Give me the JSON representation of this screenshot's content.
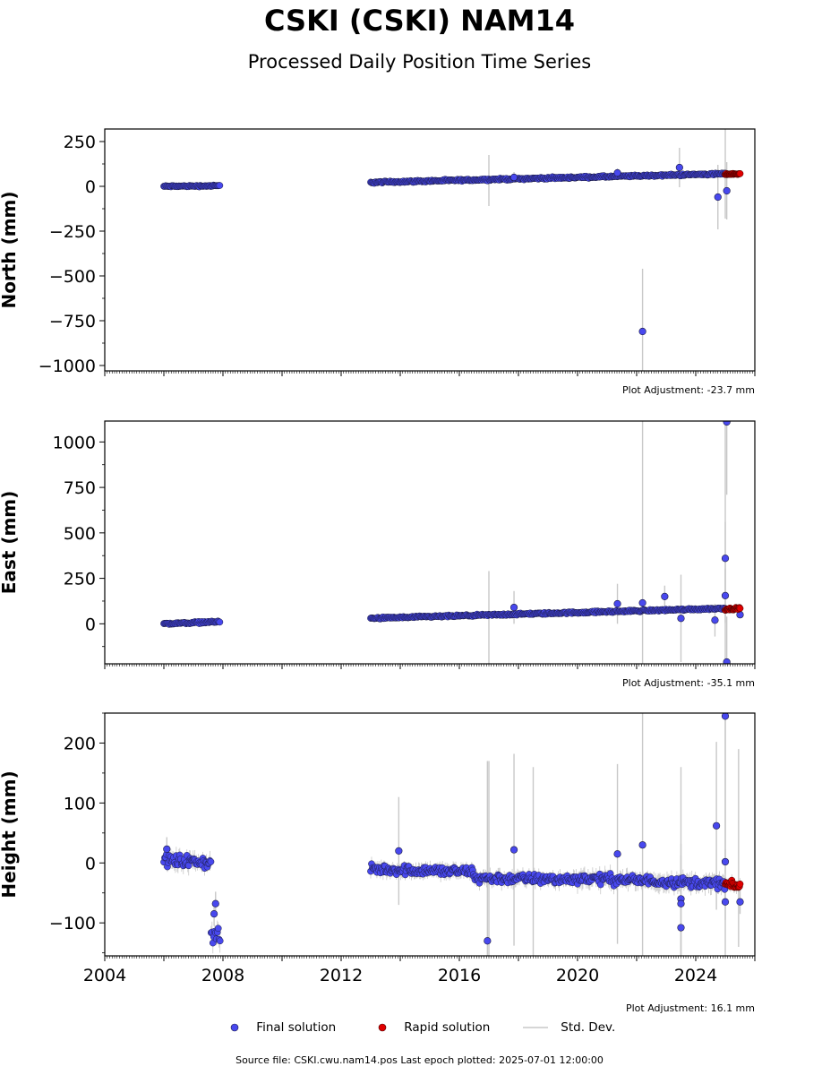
{
  "header": {
    "title": "CSKI (CSKI) NAM14",
    "subtitle": "Processed Daily Position Time Series"
  },
  "footer": {
    "source": "Source file: CSKI.cwu.nam14.pos  Last epoch plotted: 2025-07-01 12:00:00"
  },
  "legend": {
    "final_label": "Final solution",
    "rapid_label": "Rapid solution",
    "std_label": "Std. Dev."
  },
  "colors": {
    "final": "#4848ee",
    "rapid": "#e00000",
    "std_dev": "#c8c8c8"
  },
  "chart_data": [
    {
      "type": "scatter",
      "ylabel": "North (mm)",
      "adjustment_note": "Plot Adjustment: -23.7 mm",
      "xlim": [
        2004.0,
        2026.0
      ],
      "ylim": [
        -1030,
        320
      ],
      "yticks": [
        250,
        0,
        -250,
        -500,
        -750,
        -1000
      ],
      "ytick_labels": [
        "250",
        "0",
        "−250",
        "−500",
        "−750",
        "−1000"
      ],
      "final_segments": [
        {
          "x": [
            2006.0,
            2007.9
          ],
          "y": [
            0,
            3
          ],
          "noise": 4,
          "std": 6
        },
        {
          "x": [
            2013.0,
            2025.0
          ],
          "y": [
            22,
            70
          ],
          "noise": 5,
          "std": 8
        }
      ],
      "rapid_segment": {
        "x": [
          2025.0,
          2025.5
        ],
        "y": [
          68,
          70
        ],
        "noise": 3,
        "std": 6
      },
      "outliers": [
        {
          "x": 2017.85,
          "y": 50,
          "std": 30
        },
        {
          "x": 2021.35,
          "y": 75,
          "std": 25
        },
        {
          "x": 2023.45,
          "y": 105,
          "std": 110
        },
        {
          "x": 2024.75,
          "y": -60,
          "std": 180
        },
        {
          "x": 2025.05,
          "y": -25,
          "std": 160
        },
        {
          "x": 2022.2,
          "y": -810,
          "std": 350
        }
      ],
      "long_std_bars": [
        {
          "x": 2017.0,
          "lo": -110,
          "hi": 175
        },
        {
          "x": 2025.0,
          "lo": -180,
          "hi": 320
        }
      ]
    },
    {
      "type": "scatter",
      "ylabel": "East (mm)",
      "adjustment_note": "Plot Adjustment: -35.1 mm",
      "xlim": [
        2004.0,
        2026.0
      ],
      "ylim": [
        -220,
        1115
      ],
      "yticks": [
        1000,
        750,
        500,
        250,
        0
      ],
      "ytick_labels": [
        "1000",
        "750",
        "500",
        "250",
        "0"
      ],
      "final_segments": [
        {
          "x": [
            2006.0,
            2007.9
          ],
          "y": [
            0,
            12
          ],
          "noise": 5,
          "std": 6
        },
        {
          "x": [
            2013.0,
            2025.0
          ],
          "y": [
            30,
            85
          ],
          "noise": 5,
          "std": 8
        }
      ],
      "rapid_segment": {
        "x": [
          2025.0,
          2025.5
        ],
        "y": [
          80,
          85
        ],
        "noise": 5,
        "std": 6
      },
      "outliers": [
        {
          "x": 2017.85,
          "y": 90,
          "std": 90
        },
        {
          "x": 2021.35,
          "y": 110,
          "std": 110
        },
        {
          "x": 2022.2,
          "y": 115,
          "std": 1000
        },
        {
          "x": 2022.95,
          "y": 150,
          "std": 60
        },
        {
          "x": 2023.5,
          "y": 30,
          "std": 240
        },
        {
          "x": 2024.65,
          "y": 20,
          "std": 90
        },
        {
          "x": 2025.0,
          "y": 360,
          "std": 200
        },
        {
          "x": 2025.0,
          "y": 155,
          "std": 150
        },
        {
          "x": 2025.05,
          "y": -210,
          "std": 250
        },
        {
          "x": 2025.05,
          "y": 1110,
          "std": 400
        },
        {
          "x": 2025.5,
          "y": 50,
          "std": 20
        }
      ],
      "long_std_bars": [
        {
          "x": 2017.0,
          "lo": -220,
          "hi": 290
        },
        {
          "x": 2025.0,
          "lo": -220,
          "hi": 1115
        }
      ]
    },
    {
      "type": "scatter",
      "ylabel": "Height (mm)",
      "adjustment_note": "Plot Adjustment: 16.1 mm",
      "xlim": [
        2004.0,
        2026.0
      ],
      "ylim": [
        -155,
        250
      ],
      "yticks": [
        200,
        100,
        0,
        -100
      ],
      "ytick_labels": [
        "200",
        "100",
        "0",
        "−100"
      ],
      "xticks": [
        2004,
        2008,
        2012,
        2016,
        2020,
        2024
      ],
      "xtick_labels": [
        "2004",
        "2008",
        "2012",
        "2016",
        "2020",
        "2024"
      ],
      "final_segments": [
        {
          "x": [
            2006.0,
            2007.6
          ],
          "y": [
            5,
            0
          ],
          "noise": 10,
          "std": 12
        },
        {
          "x": [
            2007.6,
            2007.9
          ],
          "y": [
            -120,
            -125
          ],
          "noise": 12,
          "std": 15
        },
        {
          "x": [
            2013.0,
            2016.5
          ],
          "y": [
            -10,
            -15
          ],
          "noise": 8,
          "std": 10
        },
        {
          "x": [
            2016.5,
            2020.0
          ],
          "y": [
            -25,
            -28
          ],
          "noise": 8,
          "std": 10
        },
        {
          "x": [
            2020.0,
            2025.0
          ],
          "y": [
            -25,
            -35
          ],
          "noise": 8,
          "std": 12
        }
      ],
      "rapid_segment": {
        "x": [
          2025.0,
          2025.5
        ],
        "y": [
          -35,
          -40
        ],
        "noise": 6,
        "std": 8
      },
      "outliers": [
        {
          "x": 2006.1,
          "y": 23,
          "std": 20
        },
        {
          "x": 2007.75,
          "y": -68,
          "std": 20
        },
        {
          "x": 2007.7,
          "y": -85,
          "std": 20
        },
        {
          "x": 2013.95,
          "y": 20,
          "std": 90
        },
        {
          "x": 2016.95,
          "y": -130,
          "std": 300
        },
        {
          "x": 2017.85,
          "y": 22,
          "std": 160
        },
        {
          "x": 2021.35,
          "y": 15,
          "std": 150
        },
        {
          "x": 2022.2,
          "y": 30,
          "std": 230
        },
        {
          "x": 2023.5,
          "y": -60,
          "std": 220
        },
        {
          "x": 2023.5,
          "y": -68,
          "std": 100
        },
        {
          "x": 2023.5,
          "y": -108,
          "std": 120
        },
        {
          "x": 2024.7,
          "y": 62,
          "std": 140
        },
        {
          "x": 2025.0,
          "y": 245,
          "std": 240
        },
        {
          "x": 2025.0,
          "y": 2,
          "std": 20
        },
        {
          "x": 2025.0,
          "y": -65,
          "std": 30
        },
        {
          "x": 2025.5,
          "y": -65,
          "std": 20
        }
      ],
      "long_std_bars": [
        {
          "x": 2017.0,
          "lo": -155,
          "hi": 170
        },
        {
          "x": 2018.5,
          "lo": -155,
          "hi": 160
        },
        {
          "x": 2025.0,
          "lo": -155,
          "hi": 250
        },
        {
          "x": 2025.45,
          "lo": -140,
          "hi": 190
        }
      ]
    }
  ]
}
